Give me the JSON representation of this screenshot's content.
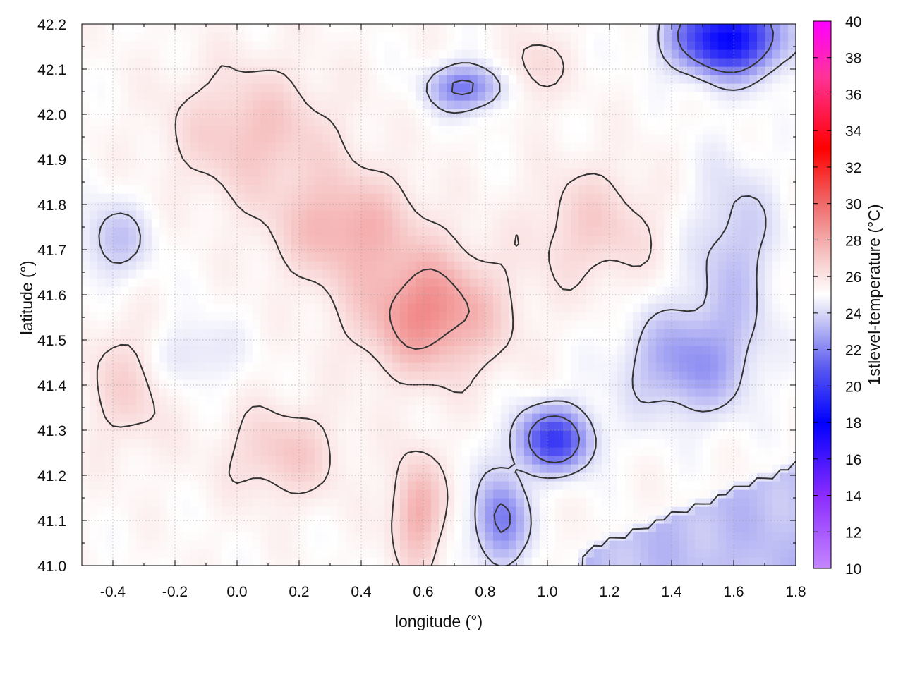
{
  "chart_data": {
    "type": "heatmap",
    "xlabel": "longitude (°)",
    "ylabel": "latitude (°)",
    "colorbar_label": "1stlevel-temperature (°C)",
    "xlim": [
      -0.5,
      1.8
    ],
    "ylim": [
      41.0,
      42.2
    ],
    "clim": [
      10,
      40
    ],
    "x_ticks": [
      -0.4,
      -0.2,
      0.0,
      0.2,
      0.4,
      0.6,
      0.8,
      1.0,
      1.2,
      1.4,
      1.6,
      1.8
    ],
    "x_tick_labels": [
      "-0.4",
      "-0.2",
      "0.0",
      "0.2",
      "0.4",
      "0.6",
      "0.8",
      "1.0",
      "1.2",
      "1.4",
      "1.6",
      "1.8"
    ],
    "y_ticks": [
      41.0,
      41.1,
      41.2,
      41.3,
      41.4,
      41.5,
      41.6,
      41.7,
      41.8,
      41.9,
      42.0,
      42.1,
      42.2
    ],
    "y_tick_labels": [
      "41.0",
      "41.1",
      "41.2",
      "41.3",
      "41.4",
      "41.5",
      "41.6",
      "41.7",
      "41.8",
      "41.9",
      "42.0",
      "42.1",
      "42.2"
    ],
    "colorbar_ticks": [
      10,
      12,
      14,
      16,
      18,
      20,
      22,
      24,
      26,
      28,
      30,
      32,
      34,
      36,
      38,
      40
    ],
    "colorbar_tick_labels": [
      "10",
      "12",
      "14",
      "16",
      "18",
      "20",
      "22",
      "24",
      "26",
      "28",
      "30",
      "32",
      "34",
      "36",
      "38",
      "40"
    ],
    "colormap": [
      {
        "value": 10,
        "color": "#c586ff"
      },
      {
        "value": 14,
        "color": "#8a2cff"
      },
      {
        "value": 18,
        "color": "#0000ff"
      },
      {
        "value": 21,
        "color": "#5a5af0"
      },
      {
        "value": 24,
        "color": "#d8d8f6"
      },
      {
        "value": 25,
        "color": "#ffffff"
      },
      {
        "value": 27,
        "color": "#f7c9c9"
      },
      {
        "value": 30,
        "color": "#ef6a6a"
      },
      {
        "value": 33,
        "color": "#ff0000"
      },
      {
        "value": 37,
        "color": "#ff3399"
      },
      {
        "value": 40,
        "color": "#ff00ff"
      }
    ],
    "contour_color": "#333333",
    "grid": true,
    "field_features": [
      {
        "kind": "max",
        "x": 0.62,
        "y": 41.56,
        "value": 29.0,
        "sx": 0.22,
        "sy": 0.13
      },
      {
        "kind": "max",
        "x": 0.35,
        "y": 41.75,
        "value": 27.8,
        "sx": 0.22,
        "sy": 0.12
      },
      {
        "kind": "max",
        "x": 0.05,
        "y": 41.96,
        "value": 27.2,
        "sx": 0.25,
        "sy": 0.14
      },
      {
        "kind": "max",
        "x": 0.58,
        "y": 41.12,
        "value": 28.0,
        "sx": 0.08,
        "sy": 0.12
      },
      {
        "kind": "max",
        "x": 0.15,
        "y": 41.25,
        "value": 27.0,
        "sx": 0.18,
        "sy": 0.1
      },
      {
        "kind": "max",
        "x": -0.35,
        "y": 41.4,
        "value": 26.6,
        "sx": 0.14,
        "sy": 0.14
      },
      {
        "kind": "max",
        "x": 1.15,
        "y": 41.75,
        "value": 26.8,
        "sx": 0.2,
        "sy": 0.13
      },
      {
        "kind": "max",
        "x": 0.95,
        "y": 42.1,
        "value": 26.5,
        "sx": 0.1,
        "sy": 0.08
      },
      {
        "kind": "min",
        "x": 1.58,
        "y": 42.17,
        "value": 18.0,
        "sx": 0.17,
        "sy": 0.08
      },
      {
        "kind": "min",
        "x": 1.02,
        "y": 41.28,
        "value": 20.0,
        "sx": 0.12,
        "sy": 0.07
      },
      {
        "kind": "min",
        "x": 0.74,
        "y": 42.06,
        "value": 21.5,
        "sx": 0.12,
        "sy": 0.05
      },
      {
        "kind": "min",
        "x": 1.45,
        "y": 41.45,
        "value": 22.5,
        "sx": 0.2,
        "sy": 0.12
      },
      {
        "kind": "min",
        "x": -0.4,
        "y": 41.72,
        "value": 23.5,
        "sx": 0.12,
        "sy": 0.09
      },
      {
        "kind": "min",
        "x": -0.15,
        "y": 41.47,
        "value": 24.0,
        "sx": 0.14,
        "sy": 0.08
      },
      {
        "kind": "min",
        "x": 0.85,
        "y": 41.1,
        "value": 21.5,
        "sx": 0.08,
        "sy": 0.1
      },
      {
        "kind": "min",
        "x": 1.6,
        "y": 41.7,
        "value": 23.5,
        "sx": 0.14,
        "sy": 0.2
      }
    ],
    "base_value": 25.2,
    "sea_value": 23.4,
    "contour_levels": [
      22,
      24,
      26,
      28
    ]
  }
}
